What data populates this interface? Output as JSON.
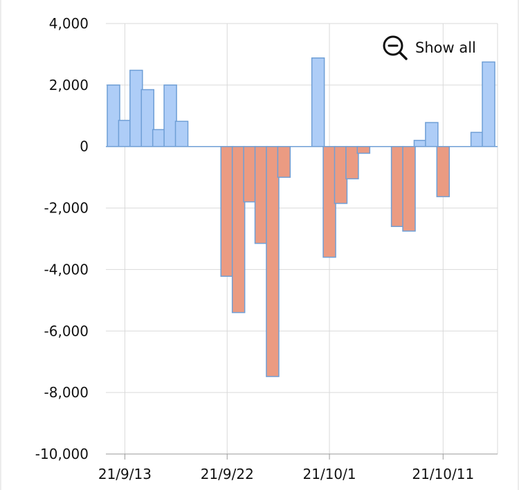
{
  "chart_data": {
    "type": "bar",
    "title": "",
    "xlabel": "",
    "ylabel": "",
    "ylim": [
      -10000,
      4000
    ],
    "yticks": [
      {
        "value": 4000,
        "label": "4,000"
      },
      {
        "value": 2000,
        "label": "2,000"
      },
      {
        "value": 0,
        "label": "0"
      },
      {
        "value": -2000,
        "label": "-2,000"
      },
      {
        "value": -4000,
        "label": "-4,000"
      },
      {
        "value": -6000,
        "label": "-6,000"
      },
      {
        "value": -8000,
        "label": "-8,000"
      },
      {
        "value": -10000,
        "label": "-10,000"
      }
    ],
    "xticks": [
      {
        "date": "2021-09-13",
        "label": "21/9/13"
      },
      {
        "date": "2021-09-22",
        "label": "21/9/22"
      },
      {
        "date": "2021-10-01",
        "label": "21/10/1"
      },
      {
        "date": "2021-10-11",
        "label": "21/10/11"
      }
    ],
    "grid": true,
    "colors": {
      "positive_fill": "#aecdf7",
      "negative_fill": "#eb9b82",
      "bar_stroke": "#6f9fd6",
      "grid": "#d9d9d9",
      "axis": "#9a9a9a"
    },
    "x": [
      "2021-09-12",
      "2021-09-13",
      "2021-09-14",
      "2021-09-15",
      "2021-09-16",
      "2021-09-17",
      "2021-09-18",
      "2021-09-22",
      "2021-09-23",
      "2021-09-24",
      "2021-09-25",
      "2021-09-26",
      "2021-09-27",
      "2021-09-30",
      "2021-10-01",
      "2021-10-02",
      "2021-10-03",
      "2021-10-04",
      "2021-10-07",
      "2021-10-08",
      "2021-10-09",
      "2021-10-10",
      "2021-10-11",
      "2021-10-14",
      "2021-10-15"
    ],
    "values": [
      2000,
      850,
      2480,
      1850,
      550,
      2000,
      820,
      -4220,
      -5400,
      -1800,
      -3150,
      -7480,
      -1000,
      2880,
      -3600,
      -1850,
      -1050,
      -220,
      -2600,
      -2750,
      200,
      780,
      -1630,
      460,
      2750
    ]
  },
  "controls": {
    "zoom_reset_label": "Show all",
    "zoom_reset_icon": "zoom-out-icon"
  }
}
